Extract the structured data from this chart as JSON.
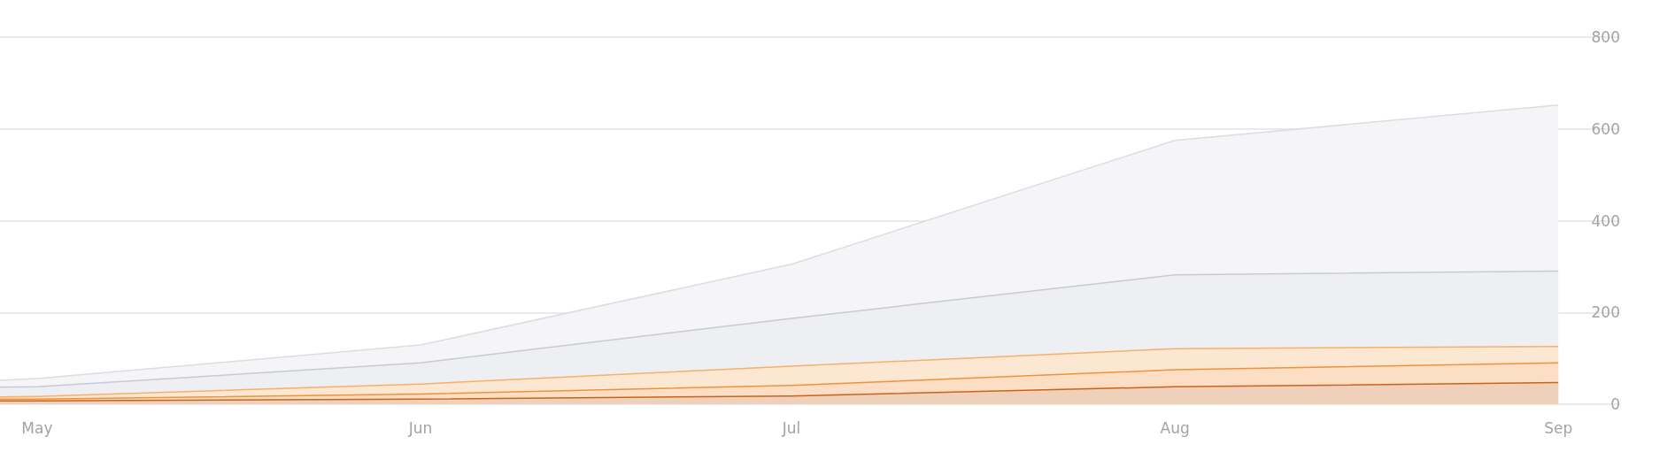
{
  "chart_data": {
    "type": "area",
    "stacked": true,
    "x": [
      "--04-28",
      "--05-01",
      "--06-01",
      "--07-01",
      "--08-01",
      "--09-01"
    ],
    "series": [
      {
        "color": "#c8651b",
        "values": [
          7,
          7,
          11,
          18,
          38,
          47
        ]
      },
      {
        "color": "#f0923a",
        "values": [
          4,
          4,
          11,
          23,
          37,
          43
        ]
      },
      {
        "color": "#f5b06b",
        "values": [
          5,
          6,
          22,
          42,
          46,
          36
        ]
      },
      {
        "color": "#c7c9d6",
        "values": [
          21,
          21,
          46,
          104,
          161,
          164
        ]
      },
      {
        "color": "#dcdde3",
        "values": [
          15,
          18,
          39,
          118,
          293,
          362
        ]
      }
    ],
    "xlim": [
      "--04-28",
      "--09-06"
    ],
    "xticks": [
      {
        "value": "--05-01",
        "label": "May"
      },
      {
        "value": "--06-01",
        "label": "Jun"
      },
      {
        "value": "--07-01",
        "label": "Jul"
      },
      {
        "value": "--08-01",
        "label": "Aug"
      },
      {
        "value": "--09-01",
        "label": "Sep"
      }
    ],
    "ylim": [
      0,
      800
    ],
    "yticks": [
      0,
      200,
      400,
      600,
      800
    ],
    "grid": "y"
  }
}
